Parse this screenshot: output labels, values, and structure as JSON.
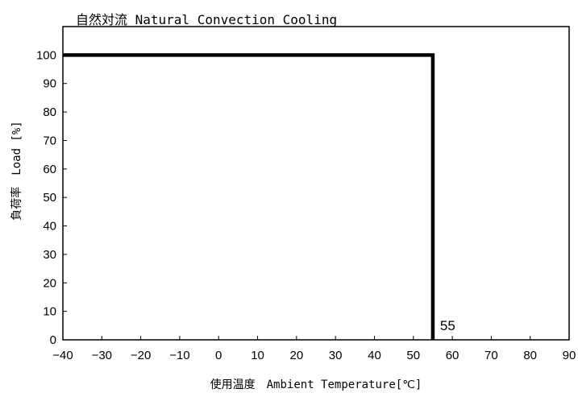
{
  "chart_data": {
    "type": "line",
    "title": "自然対流 Natural Convection Cooling",
    "xlabel": "使用温度　Ambient Temperature[℃]",
    "ylabel": "負荷率　Load [%]",
    "xlim": [
      -40,
      90
    ],
    "ylim": [
      0,
      110
    ],
    "x_ticks": [
      -40,
      -30,
      -20,
      -10,
      0,
      10,
      20,
      30,
      40,
      50,
      60,
      70,
      80,
      90
    ],
    "y_ticks": [
      0,
      10,
      20,
      30,
      40,
      50,
      60,
      70,
      80,
      90,
      100
    ],
    "grid": false,
    "legend": "none",
    "series": [
      {
        "x": [
          -40,
          55,
          55
        ],
        "y": [
          100,
          100,
          0
        ],
        "color": "#000000"
      }
    ],
    "annotations": [
      {
        "text": "55",
        "x": 55,
        "y": 0
      }
    ]
  }
}
